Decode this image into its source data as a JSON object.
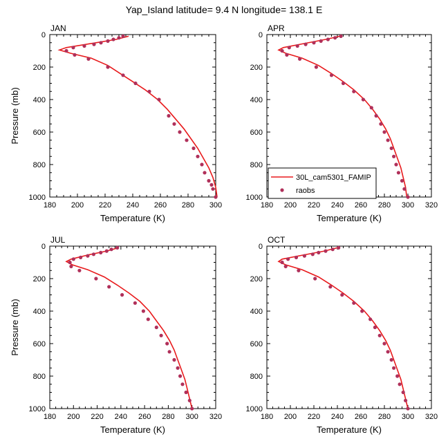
{
  "title": "Yap_Island  latitude= 9.4 N longitude= 138.1 E",
  "colors": {
    "model_line": "#e8191b",
    "obs_marker": "#b0305a",
    "frame": "#000000"
  },
  "legend": {
    "line_label": "30L_cam5301_FAMIP",
    "marker_label": "raobs",
    "placement": "inside APR panel, lower-left"
  },
  "chart_data": [
    {
      "panel": "JAN",
      "type": "line+scatter",
      "xlabel": "Temperature (K)",
      "ylabel": "Pressure (mb)",
      "xlim": [
        180,
        300
      ],
      "ylim": [
        1000,
        0
      ],
      "xticks": [
        "180",
        "200",
        "220",
        "240",
        "260",
        "280",
        "300"
      ],
      "yticks": [
        "0",
        "200",
        "400",
        "600",
        "800",
        "1000"
      ],
      "series": [
        {
          "name": "30L_cam5301_FAMIP",
          "kind": "line",
          "points": [
            [
              237,
              10
            ],
            [
              228,
              30
            ],
            [
              210,
              55
            ],
            [
              192,
              80
            ],
            [
              187,
              95
            ],
            [
              195,
              115
            ],
            [
              210,
              145
            ],
            [
              222,
              190
            ],
            [
              231,
              240
            ],
            [
              240,
              290
            ],
            [
              249,
              340
            ],
            [
              258,
              400
            ],
            [
              265,
              460
            ],
            [
              271,
              520
            ],
            [
              277,
              580
            ],
            [
              282,
              640
            ],
            [
              287,
              700
            ],
            [
              291,
              760
            ],
            [
              295,
              820
            ],
            [
              298,
              880
            ],
            [
              300,
              940
            ],
            [
              301,
              1000
            ]
          ]
        },
        {
          "name": "raobs",
          "kind": "scatter",
          "points": [
            [
              233,
              10
            ],
            [
              230,
              20
            ],
            [
              226,
              30
            ],
            [
              222,
              40
            ],
            [
              217,
              50
            ],
            [
              212,
              60
            ],
            [
              205,
              70
            ],
            [
              197,
              80
            ],
            [
              192,
              100
            ],
            [
              198,
              125
            ],
            [
              208,
              150
            ],
            [
              222,
              200
            ],
            [
              233,
              250
            ],
            [
              242,
              300
            ],
            [
              252,
              350
            ],
            [
              259,
              400
            ],
            [
              266,
              500
            ],
            [
              270,
              550
            ],
            [
              274,
              600
            ],
            [
              279,
              650
            ],
            [
              284,
              700
            ],
            [
              287,
              750
            ],
            [
              290,
              800
            ],
            [
              292,
              850
            ],
            [
              295,
              900
            ],
            [
              297,
              925
            ],
            [
              298,
              950
            ],
            [
              300,
              1000
            ]
          ]
        }
      ]
    },
    {
      "panel": "APR",
      "type": "line+scatter",
      "xlabel": "Temperature (K)",
      "ylabel": "",
      "xlim": [
        180,
        320
      ],
      "ylim": [
        1000,
        0
      ],
      "xticks": [
        "180",
        "200",
        "220",
        "240",
        "260",
        "280",
        "300",
        "320"
      ],
      "yticks": [
        "0",
        "200",
        "400",
        "600",
        "800",
        "1000"
      ],
      "series": [
        {
          "name": "30L_cam5301_FAMIP",
          "kind": "line",
          "points": [
            [
              242,
              10
            ],
            [
              230,
              30
            ],
            [
              212,
              55
            ],
            [
              194,
              80
            ],
            [
              190,
              95
            ],
            [
              196,
              115
            ],
            [
              210,
              145
            ],
            [
              224,
              190
            ],
            [
              235,
              240
            ],
            [
              245,
              290
            ],
            [
              254,
              340
            ],
            [
              263,
              400
            ],
            [
              270,
              460
            ],
            [
              276,
              520
            ],
            [
              281,
              580
            ],
            [
              285,
              640
            ],
            [
              288,
              700
            ],
            [
              291,
              760
            ],
            [
              294,
              820
            ],
            [
              296,
              880
            ],
            [
              298,
              940
            ],
            [
              299,
              1000
            ]
          ]
        },
        {
          "name": "raobs",
          "kind": "scatter",
          "points": [
            [
              243,
              10
            ],
            [
              238,
              20
            ],
            [
              232,
              30
            ],
            [
              226,
              40
            ],
            [
              220,
              50
            ],
            [
              213,
              60
            ],
            [
              206,
              70
            ],
            [
              199,
              80
            ],
            [
              193,
              100
            ],
            [
              197,
              125
            ],
            [
              208,
              150
            ],
            [
              222,
              200
            ],
            [
              235,
              250
            ],
            [
              245,
              300
            ],
            [
              254,
              350
            ],
            [
              262,
              400
            ],
            [
              269,
              450
            ],
            [
              273,
              500
            ],
            [
              277,
              550
            ],
            [
              280,
              600
            ],
            [
              283,
              650
            ],
            [
              286,
              700
            ],
            [
              288,
              750
            ],
            [
              290,
              800
            ],
            [
              292,
              850
            ],
            [
              295,
              900
            ],
            [
              297,
              950
            ],
            [
              300,
              1000
            ]
          ]
        }
      ]
    },
    {
      "panel": "JUL",
      "type": "line+scatter",
      "xlabel": "Temperature (K)",
      "ylabel": "Pressure (mb)",
      "xlim": [
        180,
        320
      ],
      "ylim": [
        1000,
        0
      ],
      "xticks": [
        "180",
        "200",
        "220",
        "240",
        "260",
        "280",
        "300",
        "320"
      ],
      "yticks": [
        "0",
        "200",
        "400",
        "600",
        "800",
        "1000"
      ],
      "series": [
        {
          "name": "30L_cam5301_FAMIP",
          "kind": "line",
          "points": [
            [
              238,
              10
            ],
            [
              228,
              30
            ],
            [
              212,
              55
            ],
            [
              198,
              80
            ],
            [
              194,
              95
            ],
            [
              199,
              115
            ],
            [
              212,
              145
            ],
            [
              226,
              190
            ],
            [
              237,
              240
            ],
            [
              247,
              290
            ],
            [
              256,
              340
            ],
            [
              264,
              400
            ],
            [
              270,
              460
            ],
            [
              276,
              520
            ],
            [
              281,
              580
            ],
            [
              285,
              640
            ],
            [
              288,
              700
            ],
            [
              291,
              760
            ],
            [
              294,
              820
            ],
            [
              296,
              880
            ],
            [
              298,
              940
            ],
            [
              300,
              1000
            ]
          ]
        },
        {
          "name": "raobs",
          "kind": "scatter",
          "points": [
            [
              237,
              10
            ],
            [
              232,
              20
            ],
            [
              228,
              30
            ],
            [
              223,
              40
            ],
            [
              217,
              50
            ],
            [
              212,
              60
            ],
            [
              206,
              70
            ],
            [
              200,
              80
            ],
            [
              197,
              100
            ],
            [
              198,
              125
            ],
            [
              205,
              150
            ],
            [
              219,
              200
            ],
            [
              230,
              250
            ],
            [
              241,
              300
            ],
            [
              252,
              350
            ],
            [
              259,
              400
            ],
            [
              263,
              450
            ],
            [
              270,
              500
            ],
            [
              274,
              550
            ],
            [
              279,
              600
            ],
            [
              281,
              650
            ],
            [
              285,
              700
            ],
            [
              288,
              750
            ],
            [
              290,
              800
            ],
            [
              292,
              850
            ],
            [
              295,
              900
            ],
            [
              298,
              950
            ],
            [
              300,
              1000
            ]
          ]
        }
      ]
    },
    {
      "panel": "OCT",
      "type": "line+scatter",
      "xlabel": "Temperature (K)",
      "ylabel": "",
      "xlim": [
        180,
        320
      ],
      "ylim": [
        1000,
        0
      ],
      "xticks": [
        "180",
        "200",
        "220",
        "240",
        "260",
        "280",
        "300",
        "320"
      ],
      "yticks": [
        "0",
        "200",
        "400",
        "600",
        "800",
        "1000"
      ],
      "series": [
        {
          "name": "30L_cam5301_FAMIP",
          "kind": "line",
          "points": [
            [
              240,
              10
            ],
            [
              229,
              30
            ],
            [
              211,
              55
            ],
            [
              193,
              80
            ],
            [
              190,
              95
            ],
            [
              196,
              115
            ],
            [
              210,
              145
            ],
            [
              224,
              190
            ],
            [
              235,
              240
            ],
            [
              245,
              290
            ],
            [
              254,
              340
            ],
            [
              263,
              400
            ],
            [
              270,
              460
            ],
            [
              276,
              520
            ],
            [
              281,
              580
            ],
            [
              285,
              640
            ],
            [
              288,
              700
            ],
            [
              291,
              760
            ],
            [
              294,
              820
            ],
            [
              296,
              880
            ],
            [
              298,
              940
            ],
            [
              300,
              1000
            ]
          ]
        },
        {
          "name": "raobs",
          "kind": "scatter",
          "points": [
            [
              241,
              10
            ],
            [
              236,
              20
            ],
            [
              230,
              30
            ],
            [
              224,
              40
            ],
            [
              219,
              50
            ],
            [
              212,
              60
            ],
            [
              205,
              70
            ],
            [
              198,
              80
            ],
            [
              193,
              100
            ],
            [
              196,
              125
            ],
            [
              207,
              150
            ],
            [
              221,
              200
            ],
            [
              234,
              250
            ],
            [
              244,
              300
            ],
            [
              254,
              350
            ],
            [
              261,
              400
            ],
            [
              268,
              450
            ],
            [
              272,
              500
            ],
            [
              276,
              550
            ],
            [
              280,
              600
            ],
            [
              283,
              650
            ],
            [
              286,
              700
            ],
            [
              288,
              750
            ],
            [
              291,
              800
            ],
            [
              293,
              850
            ],
            [
              296,
              900
            ],
            [
              298,
              950
            ],
            [
              300,
              1000
            ]
          ]
        }
      ]
    }
  ]
}
